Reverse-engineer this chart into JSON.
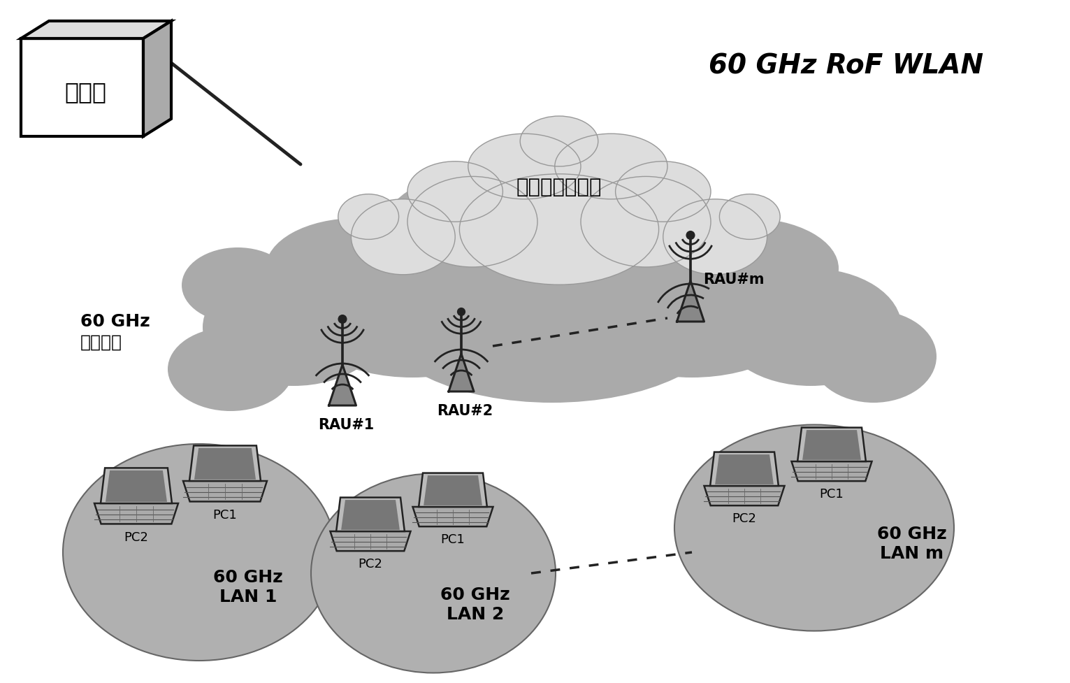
{
  "bg_color": "#ffffff",
  "fig_width": 15.31,
  "fig_height": 9.77,
  "title": "60 GHz RoF WLAN",
  "center_station_label": "中心站",
  "fiber_network_label": "基于光纤的网络",
  "wireless_network_label": "60 GHz\n无线网络",
  "rau1_label": "RAU#1",
  "rau2_label": "RAU#2",
  "raum_label": "RAU#m",
  "lan1_label": "60 GHz\nLAN 1",
  "lan2_label": "60 GHz\nLAN 2",
  "lanm_label": "60 GHz\nLAN m",
  "outer_cloud_color": "#aaaaaa",
  "inner_cloud_color": "#dddddd",
  "lan_circle_color": "#b0b0b0",
  "box_face_color": "#ffffff",
  "box_side_color": "#cccccc",
  "box_top_color": "#dddddd",
  "edge_color": "#222222",
  "text_color": "#000000",
  "dot_color": "#333333"
}
